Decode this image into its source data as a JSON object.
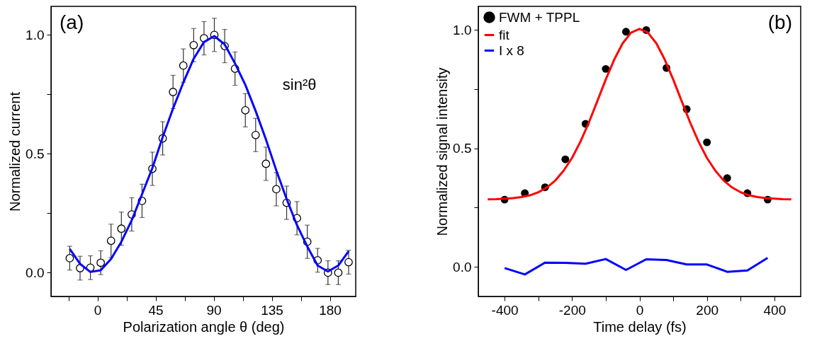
{
  "chart_data": [
    {
      "type": "scatter",
      "xlabel": "Polarization angle θ (deg)",
      "ylabel": "Normalized current",
      "xlim": [
        -36,
        200
      ],
      "ylim": [
        -0.1,
        1.12
      ],
      "xticks": [
        {
          "value": -22.5,
          "label": null
        },
        0,
        {
          "value": 22.5,
          "label": null
        },
        45,
        {
          "value": 67.5,
          "label": null
        },
        90,
        {
          "value": 112.5,
          "label": null
        },
        135,
        {
          "value": 157.5,
          "label": null
        },
        180
      ],
      "yticks": [
        {
          "value": 0,
          "label": "0.0"
        },
        {
          "value": 0.25,
          "label": null
        },
        {
          "value": 0.5,
          "label": "0.5"
        },
        {
          "value": 0.75,
          "label": null
        },
        {
          "value": 1,
          "label": "1.0"
        }
      ],
      "grid": false,
      "legend": false,
      "annotations": [
        "(a)",
        "sin²θ"
      ],
      "series": [
        {
          "type": "scatter",
          "color": "#000000",
          "marker": "circle",
          "x": [
            -21.5,
            -13.5,
            -5.5,
            2.5,
            10.5,
            18.5,
            26.5,
            34.5,
            42.5,
            50.5,
            58.5,
            66.5,
            74.5,
            82.5,
            90.5,
            98.5,
            106.5,
            114.5,
            122.5,
            130.5,
            138.5,
            146.5,
            154.5,
            162.5,
            170.5,
            178.5,
            186.5,
            194.5
          ],
          "values": [
            0.061,
            0.019,
            0.021,
            0.042,
            0.134,
            0.185,
            0.245,
            0.302,
            0.437,
            0.565,
            0.76,
            0.871,
            0.957,
            0.986,
            1.0,
            0.953,
            0.858,
            0.683,
            0.579,
            0.458,
            0.351,
            0.294,
            0.229,
            0.13,
            0.052,
            0.0,
            0.0,
            0.044
          ],
          "errors": [
            0.05,
            0.05,
            0.05,
            0.05,
            0.07,
            0.07,
            0.07,
            0.07,
            0.07,
            0.07,
            0.07,
            0.07,
            0.07,
            0.07,
            0.07,
            0.07,
            0.07,
            0.07,
            0.07,
            0.07,
            0.07,
            0.07,
            0.07,
            0.07,
            0.05,
            0.05,
            0.05,
            0.05
          ]
        },
        {
          "type": "line",
          "color": "#0000ff",
          "x": [
            -21.5,
            -13.5,
            -5.5,
            2.5,
            10.5,
            18.5,
            26.5,
            34.5,
            42.5,
            50.5,
            58.5,
            66.5,
            74.5,
            82.5,
            90.5,
            98.5,
            106.5,
            114.5,
            122.5,
            130.5,
            138.5,
            146.5,
            154.5,
            162.5,
            170.5,
            178.5,
            186.5,
            194.5
          ],
          "values": [
            0.1,
            0.037,
            0.003,
            0.01,
            0.058,
            0.13,
            0.22,
            0.33,
            0.44,
            0.57,
            0.69,
            0.8,
            0.9,
            0.97,
            0.995,
            0.96,
            0.88,
            0.79,
            0.68,
            0.56,
            0.43,
            0.31,
            0.2,
            0.11,
            0.03,
            0.005,
            0.03,
            0.09
          ]
        }
      ]
    },
    {
      "type": "scatter",
      "xlabel": "Time delay (fs)",
      "ylabel": "Normalized signal intensity",
      "xlim": [
        -478,
        478
      ],
      "ylim": [
        -0.125,
        1.1
      ],
      "xticks": [
        -400,
        {
          "value": -300,
          "label": null
        },
        -200,
        {
          "value": -100,
          "label": null
        },
        0,
        {
          "value": 100,
          "label": null
        },
        200,
        {
          "value": 300,
          "label": null
        },
        400
      ],
      "yticks": [
        {
          "value": 0,
          "label": "0.0"
        },
        {
          "value": 0.25,
          "label": null
        },
        {
          "value": 0.5,
          "label": "0.5"
        },
        {
          "value": 0.75,
          "label": null
        },
        {
          "value": 1,
          "label": "1.0"
        }
      ],
      "grid": false,
      "legend": "top left",
      "annotations": [
        "(b)"
      ],
      "series": [
        {
          "type": "scatter",
          "name": "FWM + TPPL",
          "color": "#000000",
          "marker": "circle",
          "x": [
            -400,
            -340,
            -280,
            -220,
            -160,
            -100,
            -40,
            20,
            80,
            140,
            200,
            260,
            320,
            380
          ],
          "values": [
            0.284,
            0.311,
            0.336,
            0.454,
            0.604,
            0.836,
            0.993,
            1.0,
            0.84,
            0.666,
            0.526,
            0.375,
            0.311,
            0.284
          ]
        },
        {
          "type": "line",
          "name": "fit",
          "color": "#ff0000",
          "x": [
            -450,
            -425,
            -400,
            -375,
            -350,
            -325,
            -300,
            -275,
            -250,
            -225,
            -200,
            -175,
            -150,
            -125,
            -100,
            -75,
            -50,
            -25,
            0,
            25,
            50,
            75,
            100,
            125,
            150,
            175,
            200,
            225,
            250,
            275,
            300,
            325,
            350,
            375,
            400,
            425,
            450
          ],
          "values": [
            0.285,
            0.286,
            0.288,
            0.29,
            0.295,
            0.302,
            0.315,
            0.335,
            0.364,
            0.406,
            0.46,
            0.529,
            0.61,
            0.7,
            0.791,
            0.875,
            0.944,
            0.989,
            1.005,
            0.989,
            0.944,
            0.875,
            0.791,
            0.7,
            0.61,
            0.529,
            0.46,
            0.406,
            0.364,
            0.335,
            0.315,
            0.302,
            0.295,
            0.29,
            0.288,
            0.286,
            0.285
          ]
        },
        {
          "type": "line",
          "name": "I x 8",
          "color": "#0000ff",
          "x": [
            -400,
            -340,
            -280,
            -220,
            -160,
            -100,
            -40,
            20,
            80,
            140,
            200,
            260,
            320,
            380
          ],
          "values": [
            -0.005,
            -0.032,
            0.018,
            0.017,
            0.013,
            0.033,
            -0.013,
            0.032,
            0.029,
            0.01,
            0.01,
            -0.021,
            -0.015,
            0.038
          ]
        }
      ]
    }
  ]
}
